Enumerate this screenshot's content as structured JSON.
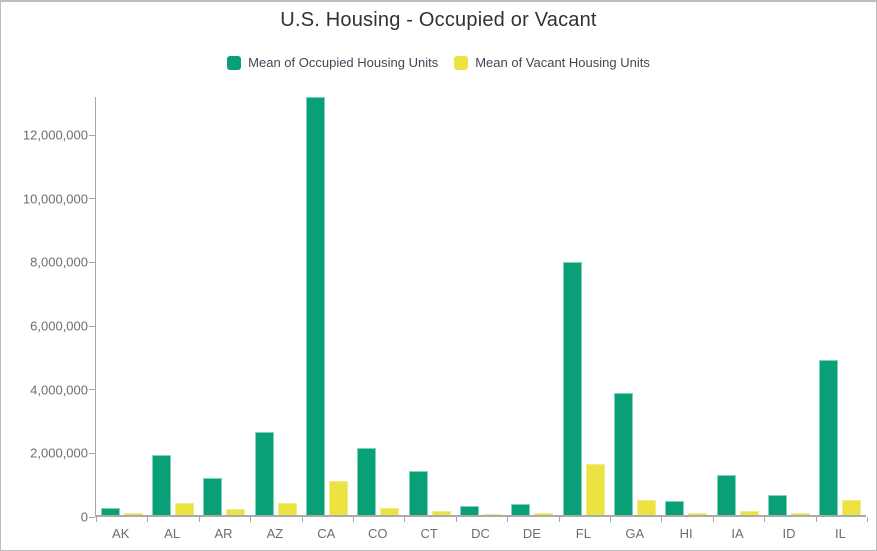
{
  "title": "U.S. Housing - Occupied or Vacant",
  "legend": {
    "items": [
      {
        "label": "Mean of Occupied Housing Units",
        "color": "#0aa077"
      },
      {
        "label": "Mean of Vacant Housing Units",
        "color": "#ece340"
      }
    ]
  },
  "axes": {
    "y_tick_labels": [
      "0",
      "2,000,000",
      "4,000,000",
      "6,000,000",
      "8,000,000",
      "10,000,000",
      "12,000,000"
    ],
    "x_tick_labels": [
      "AK",
      "AL",
      "AR",
      "AZ",
      "CA",
      "CO",
      "CT",
      "DC",
      "DE",
      "FL",
      "GA",
      "HI",
      "IA",
      "ID",
      "IL"
    ]
  },
  "chart_data": {
    "type": "bar",
    "title": "U.S. Housing - Occupied or Vacant",
    "categories": [
      "AK",
      "AL",
      "AR",
      "AZ",
      "CA",
      "CO",
      "CT",
      "DC",
      "DE",
      "FL",
      "GA",
      "HI",
      "IA",
      "ID",
      "IL"
    ],
    "series": [
      {
        "name": "Mean of Occupied Housing Units",
        "color": "#0aa077",
        "values": [
          230000,
          1870000,
          1150000,
          2620000,
          13150000,
          2100000,
          1370000,
          280000,
          350000,
          7950000,
          3830000,
          450000,
          1250000,
          620000,
          4880000
        ]
      },
      {
        "name": "Mean of Vacant Housing Units",
        "color": "#ece340",
        "values": [
          60000,
          370000,
          200000,
          380000,
          1080000,
          210000,
          130000,
          30000,
          65000,
          1610000,
          480000,
          70000,
          120000,
          65000,
          470000
        ]
      }
    ],
    "xlabel": "",
    "ylabel": "",
    "ylim": [
      0,
      13200000
    ],
    "yticks": [
      0,
      2000000,
      4000000,
      6000000,
      8000000,
      10000000,
      12000000
    ],
    "grid": false,
    "legend_position": "top"
  },
  "colors": {
    "occupied_fill": "#0aa077",
    "occupied_stroke": "#7fd3ba",
    "vacant_fill": "#ece340",
    "vacant_stroke": "#f2eb8e",
    "axis_line": "#a6a6a6",
    "tick_label_text": "#6e6e6e",
    "title_text": "#323232",
    "legend_text": "#4b4257",
    "background": "#ffffff",
    "card_border": "#bdbdbd"
  }
}
